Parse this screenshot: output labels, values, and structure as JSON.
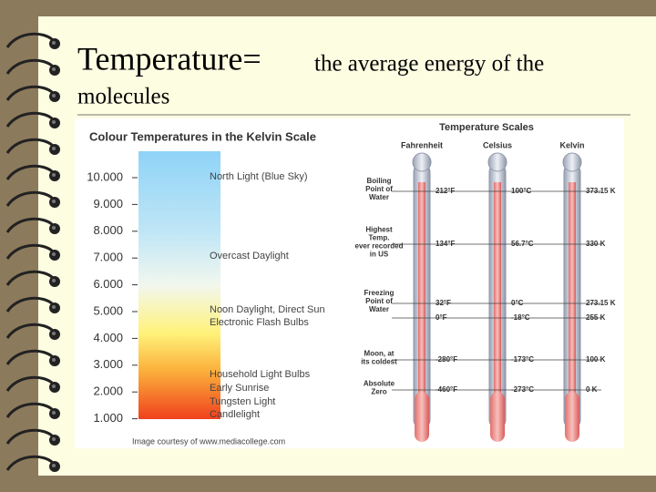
{
  "header": {
    "title_main": "Temperature=",
    "title_rest": "the average energy of the",
    "title_line2": "molecules"
  },
  "color_scale": {
    "title": "Colour Temperatures in the Kelvin Scale",
    "ticks": [
      "10.000",
      "9.000",
      "8.000",
      "7.000",
      "6.000",
      "5.000",
      "4.000",
      "3.000",
      "2.000",
      "1.000"
    ],
    "notes": [
      "North Light (Blue Sky)",
      "Overcast Daylight",
      "Noon Daylight, Direct Sun",
      "Electronic Flash Bulbs",
      "Household Light Bulbs",
      "Early Sunrise",
      "Tungsten Light",
      "Candlelight"
    ],
    "credit": "Image courtesy of www.mediacollege.com"
  },
  "temperature_scales": {
    "title": "Temperature Scales",
    "columns": [
      "Fahrenheit",
      "Celsius",
      "Kelvin"
    ],
    "rows": [
      {
        "label": [
          "Boiling",
          "Point of",
          "Water"
        ],
        "values": [
          "212°F",
          "100°C",
          "373.15 K"
        ]
      },
      {
        "label": [
          "Highest",
          "Temp.",
          "ever recorded",
          "in US"
        ],
        "values": [
          "134°F",
          "56.7°C",
          "330 K"
        ]
      },
      {
        "label": [
          "Freezing",
          "Point of",
          "Water"
        ],
        "values": [
          "32°F",
          "0°C",
          "273.15 K"
        ]
      },
      {
        "label": [],
        "values": [
          "0°F",
          "-18°C",
          "255 K"
        ]
      },
      {
        "label": [
          "Moon, at",
          "its coldest"
        ],
        "values": [
          "-280°F",
          "-173°C",
          "100 K"
        ]
      },
      {
        "label": [
          "Absolute",
          "Zero"
        ],
        "values": [
          "-460°F",
          "-273°C",
          "0 K"
        ]
      }
    ]
  }
}
